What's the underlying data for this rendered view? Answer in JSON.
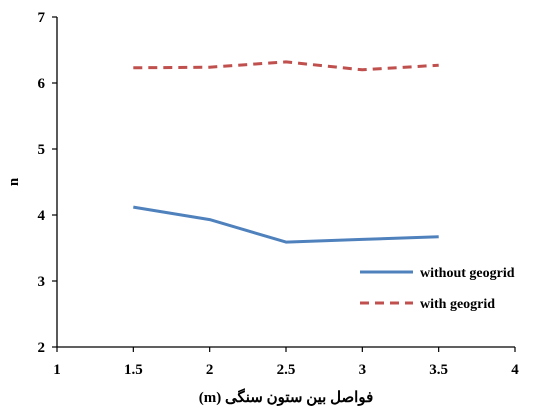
{
  "chart_data": {
    "type": "line",
    "xlabel": "فواصل بین ستون سنگی (m)",
    "ylabel": "n",
    "xlim": [
      1,
      4
    ],
    "ylim": [
      2,
      7
    ],
    "xticks": [
      "1",
      "1.5",
      "2",
      "2.5",
      "3",
      "3.5",
      "4"
    ],
    "yticks": [
      "2",
      "3",
      "4",
      "5",
      "6",
      "7"
    ],
    "grid": false,
    "legend_position": "bottom-right",
    "series": [
      {
        "name": "without geogrid",
        "color": "#4f81bd",
        "dash": "solid",
        "x": [
          1.5,
          2,
          2.5,
          3,
          3.5
        ],
        "y": [
          4.12,
          3.93,
          3.59,
          3.63,
          3.67
        ]
      },
      {
        "name": "with geogrid",
        "color": "#c0504d",
        "dash": "dashed",
        "x": [
          1.5,
          2,
          2.5,
          3,
          3.5
        ],
        "y": [
          6.23,
          6.24,
          6.32,
          6.2,
          6.27
        ]
      }
    ]
  }
}
